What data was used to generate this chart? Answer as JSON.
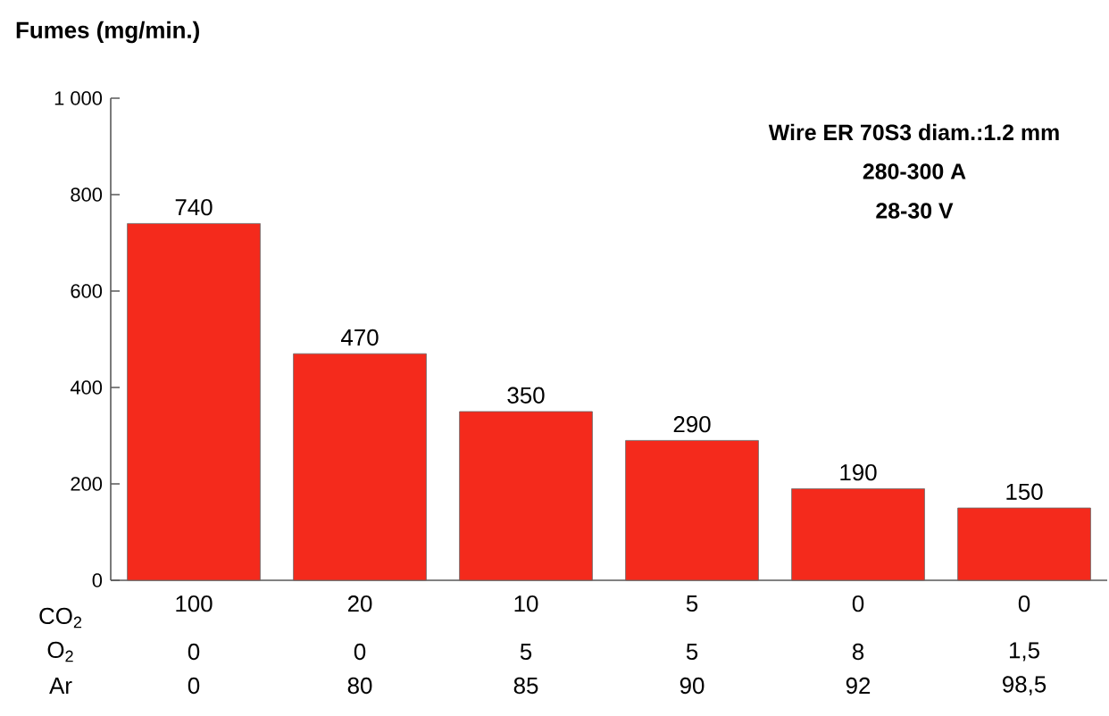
{
  "chart_data": {
    "type": "bar",
    "ylabel": "Fumes (mg/min.)",
    "categories": [
      "100",
      "20",
      "10",
      "5",
      "0",
      "0"
    ],
    "values": [
      740,
      470,
      350,
      290,
      190,
      150
    ],
    "color": "#f42a1c",
    "ylim": [
      0,
      1000
    ],
    "yticks": [
      0,
      200,
      400,
      600,
      800,
      {
        "value": 1000,
        "label": "1 000"
      }
    ],
    "data_labels": true,
    "annotations": [
      "CO$_{2}$",
      "O$_{2}$",
      "Ar",
      "0",
      "0",
      "5",
      "5",
      "8",
      "1,5",
      "0",
      "80",
      "85",
      "90",
      "92",
      "98,5",
      "Wire ER 70S3 diam.:1.2 mm",
      "280-300 A",
      "28-30 V"
    ]
  }
}
